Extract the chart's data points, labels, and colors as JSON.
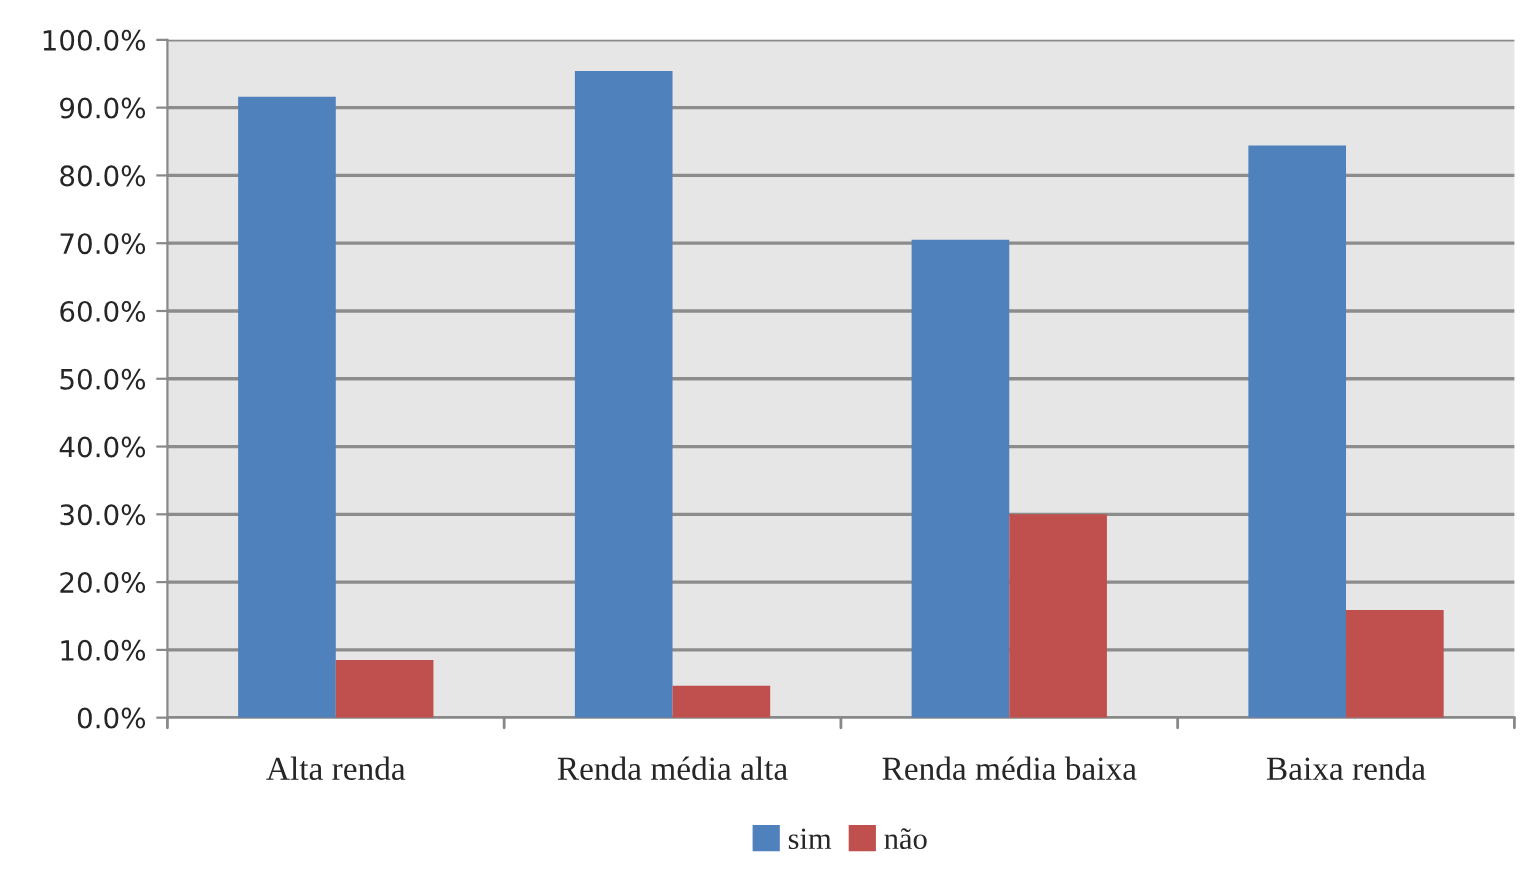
{
  "chart_data": {
    "type": "bar",
    "categories": [
      "Alta renda",
      "Renda média alta",
      "Renda média baixa",
      "Baixa renda"
    ],
    "series": [
      {
        "name": "sim",
        "color": "#4f81bd",
        "values": [
          91.6,
          95.4,
          70.5,
          84.4
        ]
      },
      {
        "name": "não",
        "color": "#c0504d",
        "values": [
          8.5,
          4.7,
          30.0,
          15.9
        ]
      }
    ],
    "ylim": [
      0,
      100
    ],
    "yticks": [
      {
        "value": 0,
        "label": "0.0%"
      },
      {
        "value": 10,
        "label": "10.0%"
      },
      {
        "value": 20,
        "label": "20.0%"
      },
      {
        "value": 30,
        "label": "30.0%"
      },
      {
        "value": 40,
        "label": "40.0%"
      },
      {
        "value": 50,
        "label": "50.0%"
      },
      {
        "value": 60,
        "label": "60.0%"
      },
      {
        "value": 70,
        "label": "70.0%"
      },
      {
        "value": 80,
        "label": "80.0%"
      },
      {
        "value": 90,
        "label": "90.0%"
      },
      {
        "value": 100,
        "label": "100.0%"
      }
    ],
    "grid": "y",
    "legend": "bottom"
  }
}
